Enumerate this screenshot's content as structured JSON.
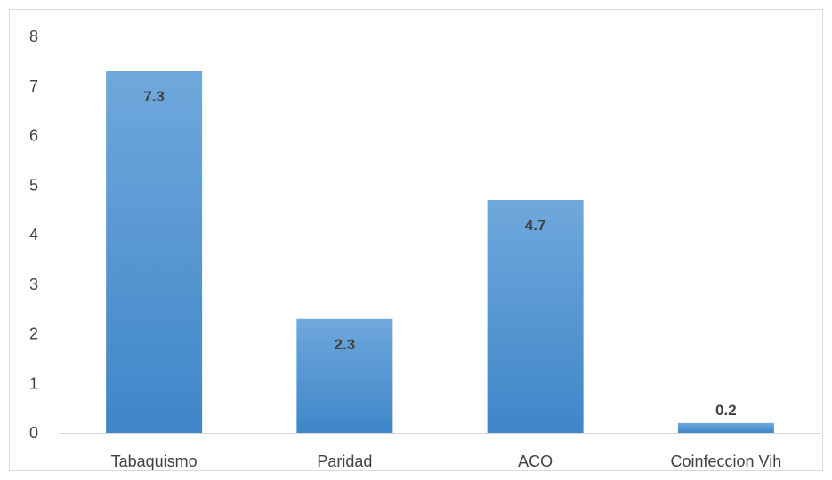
{
  "chart_data": {
    "type": "bar",
    "categories": [
      "Tabaquismo",
      "Paridad",
      "ACO",
      "Coinfeccion Vih"
    ],
    "values": [
      7.3,
      2.3,
      4.7,
      0.2
    ],
    "data_labels": [
      "7.3",
      "2.3",
      "4.7",
      "0.2"
    ],
    "y_ticks": [
      "0",
      "1",
      "2",
      "3",
      "4",
      "5",
      "6",
      "7",
      "8"
    ],
    "ylim": [
      0,
      8
    ],
    "title": "",
    "xlabel": "",
    "ylabel": "",
    "grid": false,
    "legend": "none",
    "colors": {
      "bar_top": "#6fa8dc",
      "bar_bottom": "#3f86c8",
      "axis": "#d9d9d9",
      "text": "#404040"
    }
  }
}
